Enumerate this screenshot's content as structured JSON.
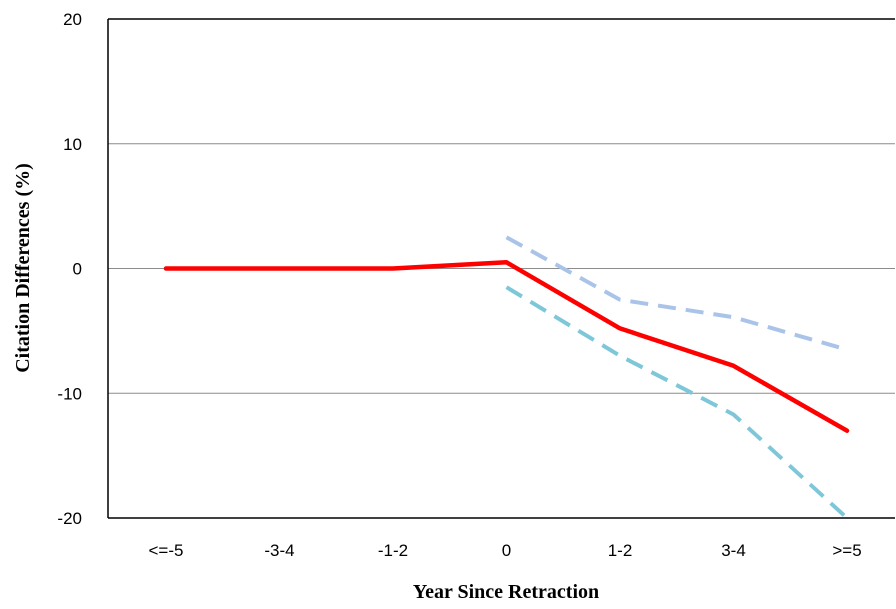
{
  "chart_data": {
    "type": "line",
    "title": "",
    "xlabel": "Year Since Retraction",
    "ylabel": "Citation Differences (%)",
    "categories": [
      "<=-5",
      "-3-4",
      "-1-2",
      "0",
      "1-2",
      "3-4",
      ">=5"
    ],
    "ylim": [
      -20,
      20
    ],
    "yticks": [
      -20,
      -10,
      0,
      10,
      20
    ],
    "grid": true,
    "legend": "none",
    "series": [
      {
        "values": [
          0,
          0,
          0,
          0.5,
          -4.8,
          -7.8,
          -13.0
        ],
        "color": "#ff0000",
        "style": "solid"
      },
      {
        "values": [
          null,
          null,
          null,
          2.5,
          -2.5,
          -3.9,
          -6.5
        ],
        "color": "#a9c4e8",
        "style": "dashed"
      },
      {
        "values": [
          null,
          null,
          null,
          -1.5,
          -7.0,
          -11.7,
          -20.0
        ],
        "color": "#7ec7d8",
        "style": "dashed"
      }
    ]
  }
}
